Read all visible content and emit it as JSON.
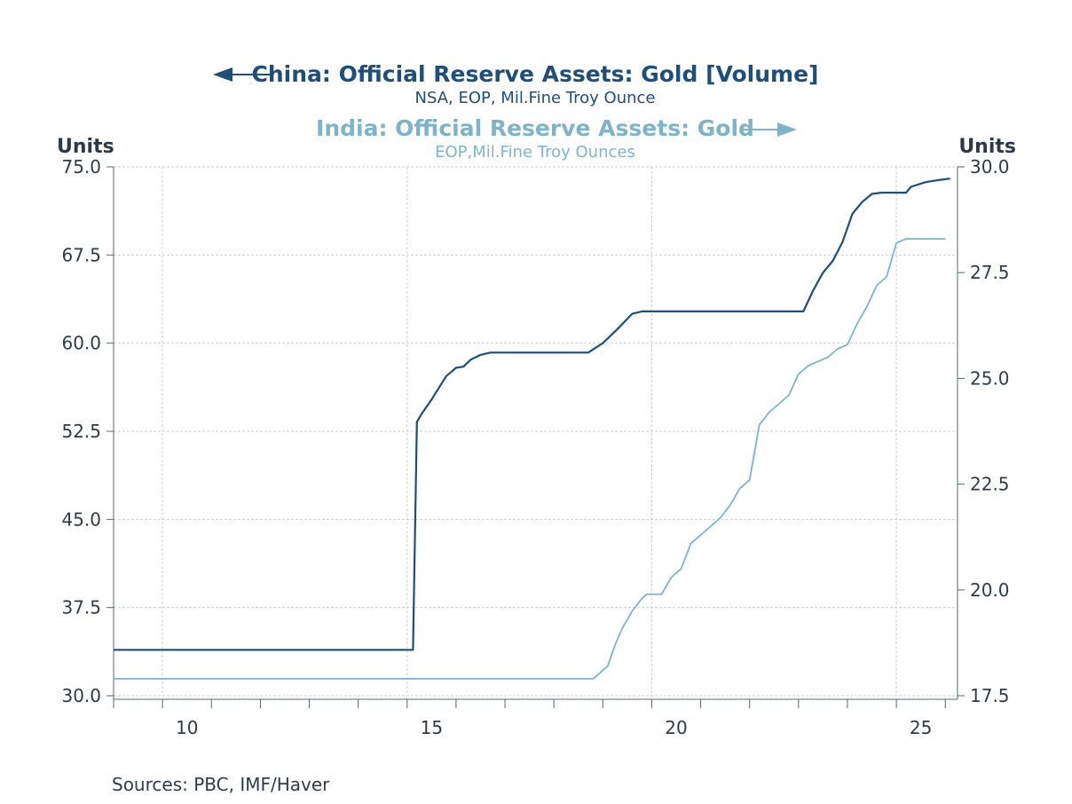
{
  "chart_data": {
    "type": "line",
    "series": [
      {
        "name": "China: Official Reserve Assets: Gold [Volume]",
        "subtitle": "NSA, EOP, Mil.Fine Troy Ounce",
        "axis": "left",
        "color": "#1f4e79",
        "points": [
          [
            2009.0,
            33.9
          ],
          [
            2015.12,
            33.9
          ],
          [
            2015.2,
            53.3
          ],
          [
            2015.3,
            54.0
          ],
          [
            2015.5,
            55.2
          ],
          [
            2015.8,
            57.2
          ],
          [
            2016.0,
            57.9
          ],
          [
            2016.15,
            58.0
          ],
          [
            2016.3,
            58.6
          ],
          [
            2016.5,
            59.0
          ],
          [
            2016.7,
            59.2
          ],
          [
            2017.0,
            59.2
          ],
          [
            2018.0,
            59.2
          ],
          [
            2018.7,
            59.2
          ],
          [
            2019.0,
            60.0
          ],
          [
            2019.3,
            61.2
          ],
          [
            2019.6,
            62.5
          ],
          [
            2019.8,
            62.7
          ],
          [
            2020.5,
            62.7
          ],
          [
            2022.0,
            62.7
          ],
          [
            2023.1,
            62.7
          ],
          [
            2023.3,
            64.5
          ],
          [
            2023.5,
            66.0
          ],
          [
            2023.7,
            67.0
          ],
          [
            2023.9,
            68.6
          ],
          [
            2024.1,
            71.0
          ],
          [
            2024.3,
            72.0
          ],
          [
            2024.5,
            72.7
          ],
          [
            2024.7,
            72.8
          ],
          [
            2025.0,
            72.8
          ],
          [
            2025.2,
            72.8
          ],
          [
            2025.3,
            73.3
          ],
          [
            2025.6,
            73.7
          ],
          [
            2025.9,
            73.9
          ],
          [
            2026.1,
            74.0
          ]
        ]
      },
      {
        "name": "India: Official Reserve Assets: Gold",
        "subtitle": "EOP,Mil.Fine Troy Ounces",
        "axis": "right",
        "color": "#7fb3c8",
        "points": [
          [
            2009.0,
            17.9
          ],
          [
            2017.0,
            17.9
          ],
          [
            2018.8,
            17.9
          ],
          [
            2018.9,
            18.0
          ],
          [
            2019.0,
            18.1
          ],
          [
            2019.1,
            18.2
          ],
          [
            2019.25,
            18.7
          ],
          [
            2019.4,
            19.1
          ],
          [
            2019.6,
            19.5
          ],
          [
            2019.8,
            19.8
          ],
          [
            2019.9,
            19.9
          ],
          [
            2020.2,
            19.9
          ],
          [
            2020.4,
            20.3
          ],
          [
            2020.6,
            20.5
          ],
          [
            2020.8,
            21.1
          ],
          [
            2021.0,
            21.3
          ],
          [
            2021.2,
            21.5
          ],
          [
            2021.4,
            21.7
          ],
          [
            2021.6,
            22.0
          ],
          [
            2021.8,
            22.4
          ],
          [
            2022.0,
            22.6
          ],
          [
            2022.2,
            23.9
          ],
          [
            2022.4,
            24.2
          ],
          [
            2022.6,
            24.4
          ],
          [
            2022.8,
            24.6
          ],
          [
            2023.0,
            25.1
          ],
          [
            2023.2,
            25.3
          ],
          [
            2023.4,
            25.4
          ],
          [
            2023.6,
            25.5
          ],
          [
            2023.8,
            25.7
          ],
          [
            2024.0,
            25.8
          ],
          [
            2024.2,
            26.3
          ],
          [
            2024.4,
            26.7
          ],
          [
            2024.6,
            27.2
          ],
          [
            2024.8,
            27.4
          ],
          [
            2024.9,
            27.8
          ],
          [
            2025.0,
            28.2
          ],
          [
            2025.2,
            28.3
          ],
          [
            2026.0,
            28.3
          ]
        ]
      }
    ],
    "xlim": [
      2009,
      2026.25
    ],
    "x_ticks": [
      2010,
      2015,
      2020,
      2025
    ],
    "x_tick_labels": [
      "10",
      "15",
      "20",
      "25"
    ],
    "left_axis": {
      "label": "Units",
      "ylim": [
        30.0,
        75.0
      ],
      "ticks": [
        30.0,
        37.5,
        45.0,
        52.5,
        60.0,
        67.5,
        75.0
      ]
    },
    "right_axis": {
      "label": "Units",
      "ylim": [
        17.5,
        30.0
      ],
      "ticks": [
        17.5,
        20.0,
        22.5,
        25.0,
        27.5,
        30.0
      ]
    },
    "grid": true,
    "source": "Sources:  PBC, IMF/Haver"
  }
}
